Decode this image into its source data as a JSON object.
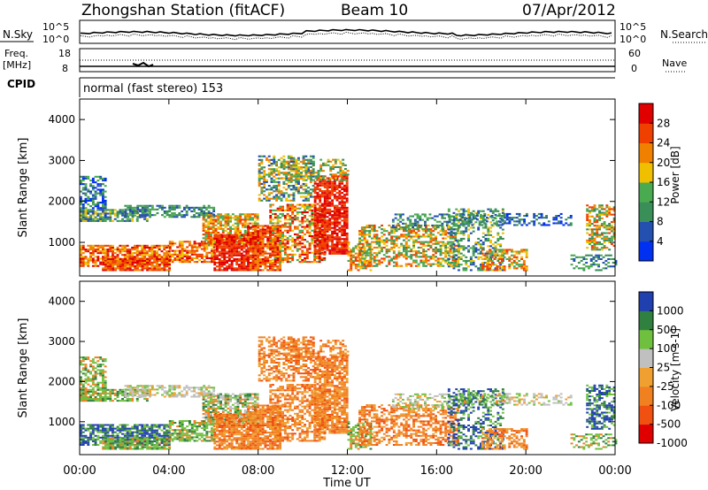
{
  "header": {
    "station": "Zhongshan Station (fitACF)",
    "beam": "Beam 10",
    "date": "07/Apr/2012"
  },
  "top_panels": {
    "nsky_label": "N.Sky",
    "nsearch_label": "N.Search",
    "freq_label": "Freq.",
    "freq_unit": "[MHz]",
    "nave_label": "Nave",
    "cpid_label": "CPID",
    "cpid_value": "normal (fast stereo) 153",
    "noise_ticks": [
      "10^5",
      "10^0"
    ],
    "freq_ticks": [
      "18",
      "8"
    ],
    "nave_ticks": [
      "60",
      "0"
    ]
  },
  "colors": {
    "power": [
      "#0030f0",
      "#2450b0",
      "#3a8e58",
      "#4aaa50",
      "#f0c000",
      "#f08000",
      "#f04000",
      "#e00000"
    ],
    "velocity": [
      "#e00000",
      "#f05010",
      "#f08020",
      "#f0a030",
      "#c0c0c0",
      "#70c040",
      "#308040",
      "#2040b0"
    ]
  },
  "chart_data": [
    {
      "type": "heatmap",
      "name": "power",
      "xlabel": "Time UT",
      "ylabel": "Slant Range [km]",
      "x_ticks": [
        "00:00",
        "04:00",
        "08:00",
        "12:00",
        "16:00",
        "20:00",
        "00:00"
      ],
      "x_hours": [
        0,
        4,
        8,
        12,
        16,
        20,
        24
      ],
      "y_ticks": [
        1000,
        2000,
        3000,
        4000
      ],
      "ylim": [
        180,
        4500
      ],
      "xlim": [
        0,
        24
      ],
      "colorbar_label": "Power [dB]",
      "colorbar_ticks": [
        "28",
        "24",
        "20",
        "16",
        "12",
        "8",
        "4"
      ],
      "colorbar_range": [
        0,
        32
      ]
    },
    {
      "type": "heatmap",
      "name": "velocity",
      "xlabel": "Time UT",
      "ylabel": "Slant Range [km]",
      "x_ticks": [
        "00:00",
        "04:00",
        "08:00",
        "12:00",
        "16:00",
        "20:00",
        "00:00"
      ],
      "x_hours": [
        0,
        4,
        8,
        12,
        16,
        20,
        24
      ],
      "y_ticks": [
        1000,
        2000,
        3000,
        4000
      ],
      "ylim": [
        180,
        4500
      ],
      "xlim": [
        0,
        24
      ],
      "colorbar_label": "Velocity [m s-1]",
      "colorbar_ticks": [
        "1000",
        "500",
        "100",
        "25",
        "-25",
        "-100",
        "-500",
        "-1000"
      ]
    }
  ]
}
